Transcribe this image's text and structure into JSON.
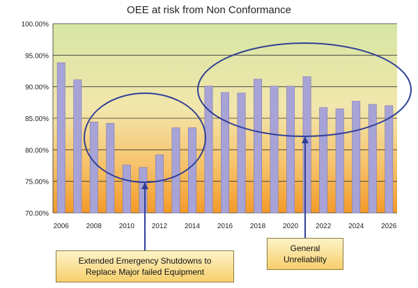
{
  "chart_data": {
    "type": "bar",
    "title": "OEE at risk from Non Conformance",
    "xlabel": "",
    "ylabel": "",
    "ylim": [
      70,
      100
    ],
    "yticks": [
      "70.00%",
      "75.00%",
      "80.00%",
      "85.00%",
      "90.00%",
      "95.00%",
      "100.00%"
    ],
    "xtick_labels": [
      "2006",
      "2008",
      "2010",
      "2012",
      "2014",
      "2016",
      "2018",
      "2020",
      "2022",
      "2024",
      "2026"
    ],
    "categories": [
      "2006",
      "2007",
      "2008",
      "2009",
      "2010",
      "2011",
      "2012",
      "2013",
      "2014",
      "2015",
      "2016",
      "2017",
      "2018",
      "2019",
      "2020",
      "2021",
      "2022",
      "2023",
      "2024",
      "2025",
      "2026"
    ],
    "values": [
      93.8,
      91.1,
      84.4,
      84.2,
      77.6,
      77.2,
      79.2,
      83.5,
      83.5,
      90.1,
      89.1,
      89.0,
      91.2,
      90.1,
      90.1,
      91.6,
      86.7,
      86.5,
      87.7,
      87.2,
      87.0
    ],
    "grid": true,
    "legend": "none",
    "colors": {
      "bar": "#a7a3d6",
      "bar_edge": "#7d78b3",
      "ellipse": "#2f3f96",
      "bg_top": "#d6e6a4",
      "bg_bottom": "#f39a28"
    },
    "annotations": [
      {
        "text": "Extended Emergency Shutdowns to\nReplace Major failed Equipment"
      },
      {
        "text": "General\nUnreliability"
      }
    ]
  }
}
